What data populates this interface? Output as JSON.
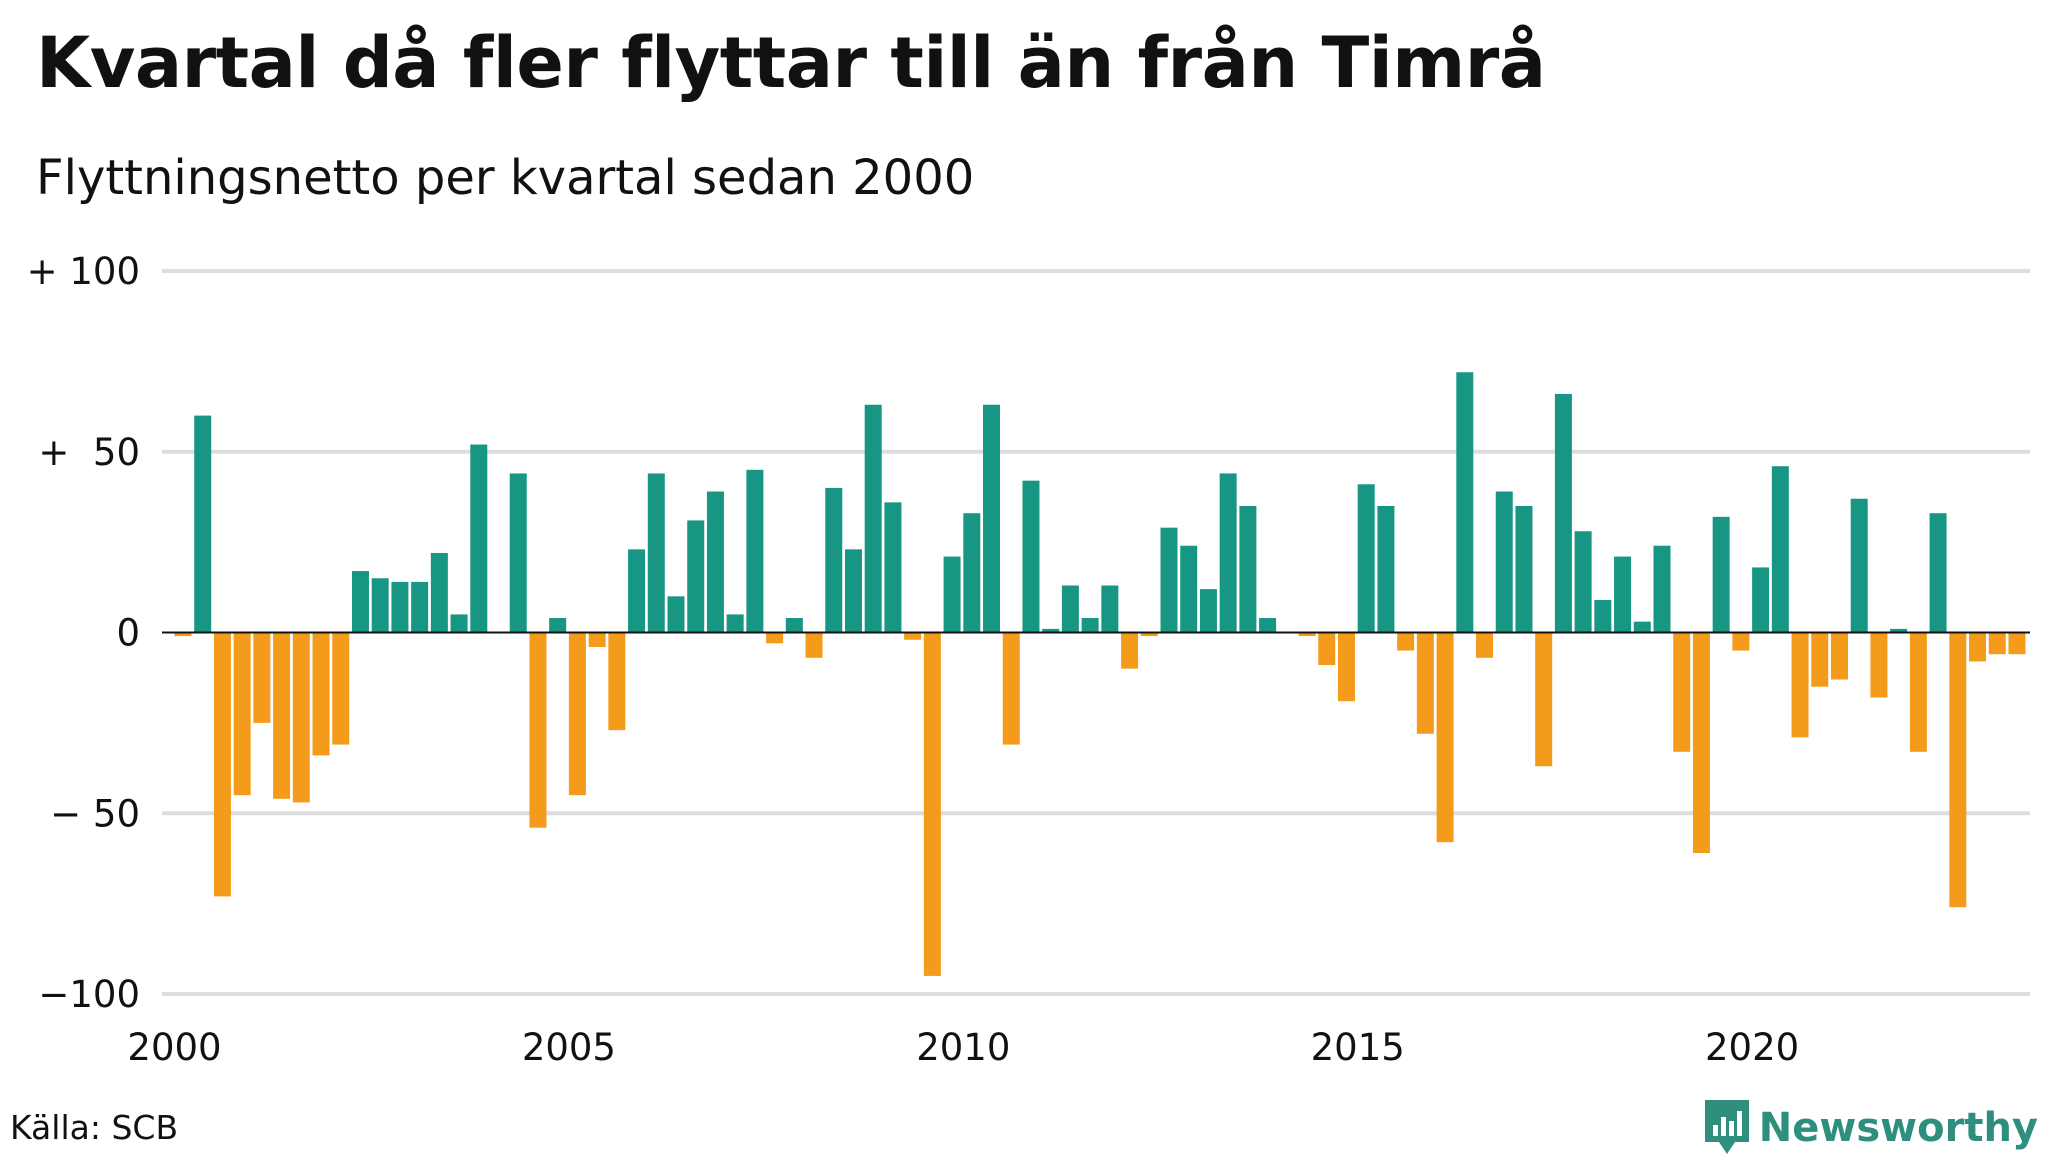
{
  "title": "Kvartal då fler flyttar till än från Timrå",
  "subtitle": "Flyttningsnetto per kvartal sedan 2000",
  "source": "Källa: SCB",
  "brand": "Newsworthy",
  "colors": {
    "positive": "#179684",
    "negative": "#f59b1b",
    "grid": "#dddddd",
    "zero_line": "#111111",
    "brand": "#2f8f7f",
    "text": "#111111"
  },
  "chart_data": {
    "type": "bar",
    "title": "Kvartal då fler flyttar till än från Timrå",
    "subtitle": "Flyttningsnetto per kvartal sedan 2000",
    "ylim": [
      -100,
      100
    ],
    "grid": true,
    "y_ticks": [
      {
        "value": 100,
        "label": "+ 100"
      },
      {
        "value": 50,
        "label": "+  50"
      },
      {
        "value": 0,
        "label": "0"
      },
      {
        "value": -50,
        "label": "− 50"
      },
      {
        "value": -100,
        "label": "−100"
      }
    ],
    "x_ticks": [
      {
        "quarter_index": 0,
        "label": "2000"
      },
      {
        "quarter_index": 20,
        "label": "2005"
      },
      {
        "quarter_index": 40,
        "label": "2010"
      },
      {
        "quarter_index": 60,
        "label": "2015"
      },
      {
        "quarter_index": 80,
        "label": "2020"
      }
    ],
    "first_quarter": "2000 Q1",
    "values": [
      -1,
      60,
      -73,
      -45,
      -25,
      -46,
      -47,
      -34,
      -31,
      17,
      15,
      14,
      14,
      22,
      5,
      52,
      0,
      44,
      -54,
      4,
      -45,
      -4,
      -27,
      23,
      44,
      10,
      31,
      39,
      5,
      45,
      -3,
      4,
      -7,
      40,
      23,
      63,
      36,
      -2,
      -95,
      21,
      33,
      63,
      -31,
      42,
      1,
      13,
      4,
      13,
      -10,
      -1,
      29,
      24,
      12,
      44,
      35,
      4,
      0,
      -1,
      -9,
      -19,
      41,
      35,
      -5,
      -28,
      -58,
      72,
      -7,
      39,
      35,
      -37,
      66,
      28,
      9,
      21,
      3,
      24,
      -33,
      -61,
      32,
      -5,
      18,
      46,
      -29,
      -15,
      -13,
      37,
      -18,
      1,
      -33,
      33,
      -76,
      -8,
      -6,
      -6
    ]
  }
}
